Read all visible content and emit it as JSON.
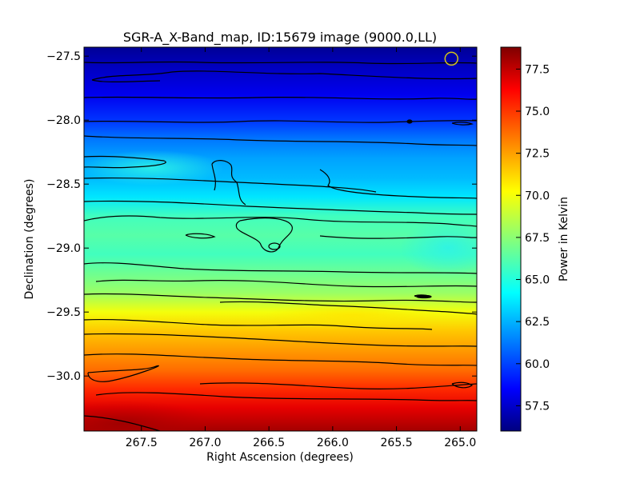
{
  "chart_data": {
    "type": "heatmap",
    "title": "SGR-A_X-Band_map, ID:15679 image (9000.0,LL)",
    "xlabel": "Right Ascension (degrees)",
    "ylabel": "Declination (degrees)",
    "xlim": [
      267.95,
      264.87
    ],
    "ylim": [
      -30.43,
      -27.43
    ],
    "x_ticks": [
      267.5,
      267.0,
      266.5,
      266.0,
      265.5,
      265.0
    ],
    "x_tick_labels": [
      "267.5",
      "267.0",
      "266.5",
      "266.0",
      "265.5",
      "265.0"
    ],
    "y_ticks": [
      -27.5,
      -28.0,
      -28.5,
      -29.0,
      -29.5,
      -30.0
    ],
    "y_tick_labels": [
      "−27.5",
      "−28.0",
      "−28.5",
      "−29.0",
      "−29.5",
      "−30.0"
    ],
    "colorbar": {
      "label": "Power in Kelvin",
      "range": [
        56.0,
        78.8
      ],
      "colormap": "jet",
      "ticks": [
        57.5,
        60.0,
        62.5,
        65.0,
        67.5,
        70.0,
        72.5,
        75.0,
        77.5
      ],
      "tick_labels": [
        "57.5",
        "60.0",
        "62.5",
        "65.0",
        "67.5",
        "70.0",
        "72.5",
        "75.0",
        "77.5"
      ]
    },
    "declination_profile": {
      "dec": [
        -27.43,
        -27.6,
        -27.8,
        -28.0,
        -28.15,
        -28.3,
        -28.45,
        -28.6,
        -28.75,
        -28.9,
        -29.05,
        -29.2,
        -29.35,
        -29.5,
        -29.65,
        -29.8,
        -29.95,
        -30.1,
        -30.25,
        -30.43
      ],
      "power": [
        56.5,
        57.5,
        58.5,
        60.0,
        61.5,
        62.5,
        63.0,
        64.0,
        66.0,
        66.5,
        66.0,
        67.0,
        68.0,
        70.0,
        71.5,
        72.5,
        73.5,
        75.0,
        76.5,
        78.0
      ]
    },
    "beam_marker": {
      "ra": 265.0,
      "dec": -27.52,
      "color": "#d4c419"
    },
    "contours": true,
    "grid": false
  }
}
